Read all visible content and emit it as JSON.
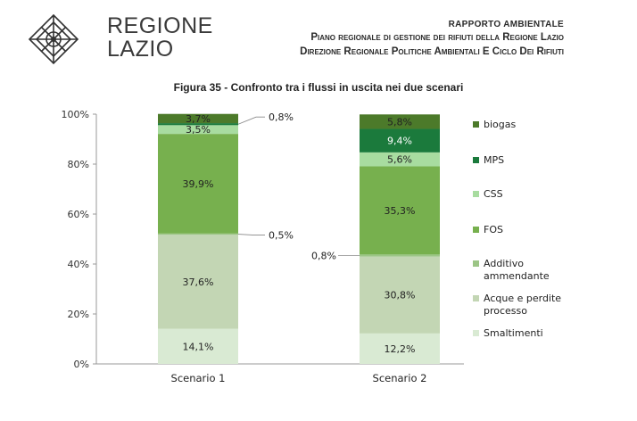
{
  "header": {
    "logo_line1": "REGIONE",
    "logo_line2": "LAZIO",
    "report": "RAPPORTO AMBIENTALE",
    "plan": "Piano regionale di gestione dei rifiuti della Regione Lazio",
    "direction": "Direzione Regionale Politiche Ambientali E Ciclo Dei Rifiuti"
  },
  "figure_title": "Figura 35 - Confronto tra i flussi in uscita nei due scenari",
  "chart_data": {
    "type": "bar",
    "stacked": true,
    "categories": [
      "Scenario 1",
      "Scenario 2"
    ],
    "ylim": [
      0,
      100
    ],
    "yticks": [
      "0%",
      "20%",
      "40%",
      "60%",
      "80%",
      "100%"
    ],
    "series": [
      {
        "name": "Smaltimenti",
        "color": "#d9ead3",
        "values": [
          14.1,
          12.2
        ],
        "labels": [
          "14,1%",
          "12,2%"
        ]
      },
      {
        "name": "Acque e perdite processo",
        "color": "#c3d6b4",
        "values": [
          37.6,
          30.8
        ],
        "labels": [
          "37,6%",
          "30,8%"
        ]
      },
      {
        "name": "Additivo ammendante",
        "color": "#9cc586",
        "values": [
          0.5,
          0.8
        ],
        "labels": [
          "0,5%",
          "0,8%"
        ]
      },
      {
        "name": "FOS",
        "color": "#77b04e",
        "values": [
          39.9,
          35.3
        ],
        "labels": [
          "39,9%",
          "35,3%"
        ]
      },
      {
        "name": "CSS",
        "color": "#a8dca0",
        "values": [
          3.5,
          5.6
        ],
        "labels": [
          "3,5%",
          "5,6%"
        ]
      },
      {
        "name": "MPS",
        "color": "#1b7a3c",
        "values": [
          0.8,
          9.4
        ],
        "labels": [
          "0,8%",
          "9,4%"
        ]
      },
      {
        "name": "biogas",
        "color": "#4c7a2a",
        "values": [
          3.7,
          5.8
        ],
        "labels": [
          "3,7%",
          "5,8%"
        ]
      }
    ],
    "legend": {
      "position": "right",
      "order": [
        "biogas",
        "MPS",
        "CSS",
        "FOS",
        "Additivo ammendante",
        "Acque e perdite processo",
        "Smaltimenti"
      ],
      "display": [
        [
          "biogas"
        ],
        [
          "MPS"
        ],
        [
          "CSS"
        ],
        [
          "FOS"
        ],
        [
          "Additivo",
          "ammendante"
        ],
        [
          "Acque e perdite",
          "processo"
        ],
        [
          "Smaltimenti"
        ]
      ]
    }
  }
}
